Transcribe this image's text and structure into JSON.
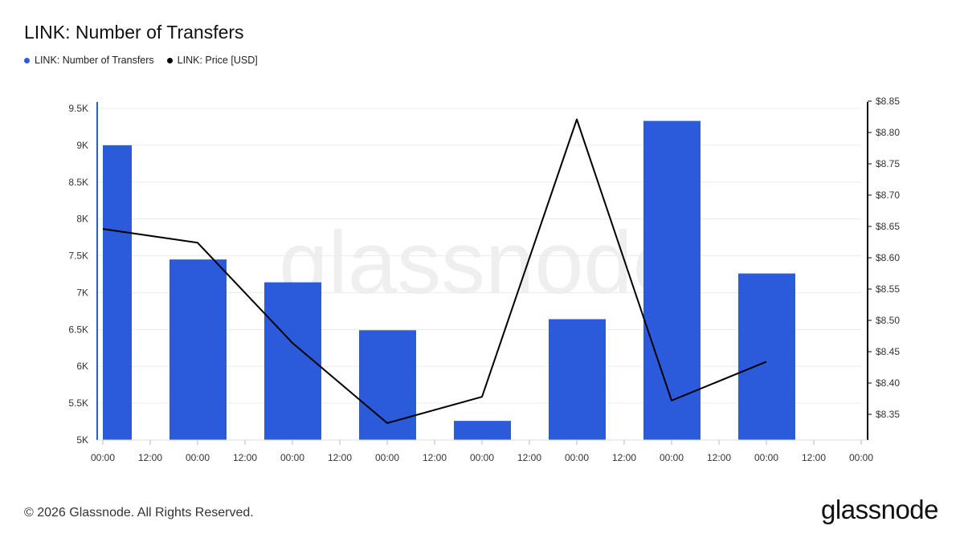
{
  "title": "LINK: Number of Transfers",
  "legend": [
    {
      "label": "LINK: Number of Transfers",
      "color": "#2b5bdb"
    },
    {
      "label": "LINK: Price [USD]",
      "color": "#000000"
    }
  ],
  "watermark": "glassnode",
  "footer": {
    "copyright": "© 2026 Glassnode. All Rights Reserved.",
    "brand": "glassnode"
  },
  "chart_data": {
    "type": "bar",
    "x_ticks": [
      "00:00",
      "12:00",
      "00:00",
      "12:00",
      "00:00",
      "12:00",
      "00:00",
      "12:00",
      "00:00",
      "12:00",
      "00:00",
      "12:00",
      "00:00",
      "12:00",
      "00:00",
      "12:00",
      "00:00"
    ],
    "left_axis": {
      "ticks": [
        "9.5K",
        "9K",
        "8.5K",
        "8K",
        "7.5K",
        "7K",
        "6.5K",
        "6K",
        "5.5K",
        "5K"
      ],
      "ylim": [
        5000,
        9700
      ]
    },
    "right_axis": {
      "ticks": [
        "$8.85",
        "$8.80",
        "$8.75",
        "$8.70",
        "$8.65",
        "$8.60",
        "$8.55",
        "$8.50",
        "$8.45",
        "$8.40",
        "$8.35"
      ],
      "ylim": [
        8.31,
        8.85
      ]
    },
    "series": [
      {
        "name": "LINK: Number of Transfers",
        "type": "bar",
        "color": "#2b5bdb",
        "axis": "left",
        "values": [
          9000,
          7450,
          7140,
          6490,
          5260,
          6640,
          9330,
          7260
        ]
      },
      {
        "name": "LINK: Price [USD]",
        "type": "line",
        "color": "#000000",
        "axis": "right",
        "values": [
          8.646,
          8.624,
          8.464,
          8.336,
          8.378,
          8.821,
          8.372,
          8.434
        ]
      }
    ],
    "grid": true
  }
}
